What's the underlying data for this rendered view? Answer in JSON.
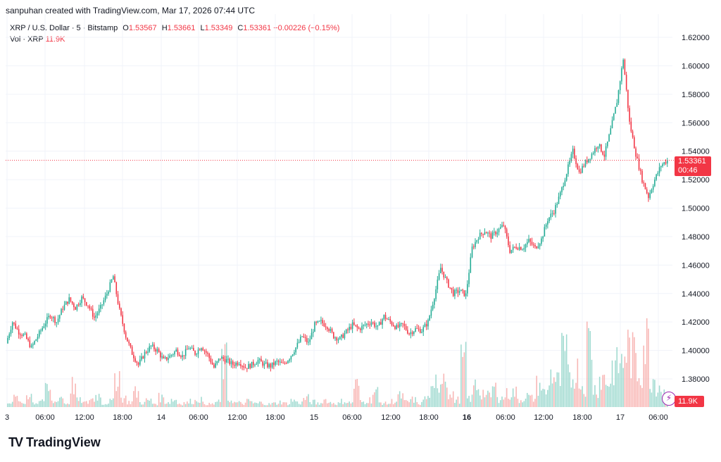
{
  "header": {
    "created_by": "sanpuhan created with TradingView.com, Mar 17, 2026 07:44 UTC"
  },
  "legend": {
    "symbol": "XRP / U.S. Dollar · 5 · Bitstamp",
    "open_label": "O",
    "open_value": "1.53567",
    "high_label": "H",
    "high_value": "1.53661",
    "low_label": "L",
    "low_value": "1.53349",
    "close_label": "C",
    "close_value": "1.53361",
    "change": "−0.00226 (−0.15%)",
    "volume_label": "Vol · XRP",
    "volume_value": "11.9K"
  },
  "price_tag": {
    "price": "1.53361",
    "countdown": "00:46"
  },
  "volume_tag": "11.9K",
  "footer": {
    "brand": "TradingView",
    "logo": "TV"
  },
  "colors": {
    "up": "#22ab94",
    "down": "#f23645",
    "vol_up": "#8fd4c8",
    "vol_down": "#f7a9a7",
    "grid": "#f0f3fa"
  },
  "chart_data": {
    "type": "candlestick",
    "symbol": "XRP / U.S. Dollar",
    "interval": "5",
    "exchange": "Bitstamp",
    "ylim": [
      1.365,
      1.625
    ],
    "y_ticks": [
      "1.62000",
      "1.60000",
      "1.58000",
      "1.56000",
      "1.54000",
      "1.52000",
      "1.50000",
      "1.48000",
      "1.46000",
      "1.44000",
      "1.42000",
      "1.40000",
      "1.38000"
    ],
    "x_ticks": [
      {
        "label": "3",
        "bold": false
      },
      {
        "label": "06:00",
        "bold": false
      },
      {
        "label": "12:00",
        "bold": false
      },
      {
        "label": "18:00",
        "bold": false
      },
      {
        "label": "14",
        "bold": false
      },
      {
        "label": "06:00",
        "bold": false
      },
      {
        "label": "12:00",
        "bold": false
      },
      {
        "label": "18:00",
        "bold": false
      },
      {
        "label": "15",
        "bold": false
      },
      {
        "label": "06:00",
        "bold": false
      },
      {
        "label": "12:00",
        "bold": false
      },
      {
        "label": "18:00",
        "bold": false
      },
      {
        "label": "16",
        "bold": true
      },
      {
        "label": "06:00",
        "bold": false
      },
      {
        "label": "12:00",
        "bold": false
      },
      {
        "label": "18:00",
        "bold": false
      },
      {
        "label": "17",
        "bold": false
      },
      {
        "label": "06:00",
        "bold": false
      }
    ],
    "grid": true,
    "last_close": 1.53361,
    "price_path": [
      [
        0,
        1.405
      ],
      [
        1,
        1.42
      ],
      [
        2,
        1.413
      ],
      [
        3,
        1.41
      ],
      [
        4,
        1.402
      ],
      [
        5,
        1.41
      ],
      [
        6,
        1.418
      ],
      [
        7,
        1.425
      ],
      [
        8,
        1.42
      ],
      [
        9,
        1.43
      ],
      [
        10,
        1.436
      ],
      [
        11,
        1.43
      ],
      [
        12,
        1.437
      ],
      [
        13,
        1.432
      ],
      [
        14,
        1.423
      ],
      [
        15,
        1.43
      ],
      [
        16,
        1.44
      ],
      [
        17,
        1.452
      ],
      [
        18,
        1.428
      ],
      [
        19,
        1.41
      ],
      [
        20,
        1.398
      ],
      [
        21,
        1.39
      ],
      [
        22,
        1.398
      ],
      [
        23,
        1.403
      ],
      [
        24,
        1.4
      ],
      [
        25,
        1.393
      ],
      [
        26,
        1.396
      ],
      [
        27,
        1.4
      ],
      [
        28,
        1.396
      ],
      [
        29,
        1.402
      ],
      [
        30,
        1.398
      ],
      [
        31,
        1.403
      ],
      [
        32,
        1.397
      ],
      [
        33,
        1.388
      ],
      [
        34,
        1.395
      ],
      [
        35,
        1.393
      ],
      [
        36,
        1.39
      ],
      [
        37,
        1.392
      ],
      [
        38,
        1.388
      ],
      [
        39,
        1.39
      ],
      [
        40,
        1.393
      ],
      [
        41,
        1.39
      ],
      [
        42,
        1.389
      ],
      [
        43,
        1.392
      ],
      [
        44,
        1.39
      ],
      [
        45,
        1.395
      ],
      [
        46,
        1.402
      ],
      [
        47,
        1.41
      ],
      [
        48,
        1.405
      ],
      [
        49,
        1.418
      ],
      [
        50,
        1.42
      ],
      [
        51,
        1.417
      ],
      [
        52,
        1.41
      ],
      [
        53,
        1.408
      ],
      [
        54,
        1.413
      ],
      [
        55,
        1.418
      ],
      [
        56,
        1.415
      ],
      [
        57,
        1.418
      ],
      [
        58,
        1.42
      ],
      [
        59,
        1.416
      ],
      [
        60,
        1.424
      ],
      [
        61,
        1.42
      ],
      [
        62,
        1.416
      ],
      [
        63,
        1.418
      ],
      [
        64,
        1.412
      ],
      [
        65,
        1.415
      ],
      [
        66,
        1.414
      ],
      [
        67,
        1.42
      ],
      [
        68,
        1.438
      ],
      [
        69,
        1.458
      ],
      [
        70,
        1.448
      ],
      [
        71,
        1.44
      ],
      [
        72,
        1.442
      ],
      [
        73,
        1.439
      ],
      [
        74,
        1.472
      ],
      [
        75,
        1.48
      ],
      [
        76,
        1.484
      ],
      [
        77,
        1.48
      ],
      [
        78,
        1.484
      ],
      [
        79,
        1.488
      ],
      [
        80,
        1.47
      ],
      [
        81,
        1.473
      ],
      [
        82,
        1.472
      ],
      [
        83,
        1.477
      ],
      [
        84,
        1.472
      ],
      [
        85,
        1.478
      ],
      [
        86,
        1.492
      ],
      [
        87,
        1.498
      ],
      [
        88,
        1.51
      ],
      [
        89,
        1.525
      ],
      [
        90,
        1.54
      ],
      [
        91,
        1.525
      ],
      [
        92,
        1.532
      ],
      [
        93,
        1.538
      ],
      [
        94,
        1.545
      ],
      [
        95,
        1.537
      ],
      [
        96,
        1.555
      ],
      [
        97,
        1.575
      ],
      [
        98,
        1.605
      ],
      [
        99,
        1.56
      ],
      [
        100,
        1.538
      ],
      [
        101,
        1.52
      ],
      [
        102,
        1.508
      ],
      [
        103,
        1.52
      ],
      [
        104,
        1.53
      ],
      [
        105,
        1.53361
      ]
    ],
    "volume_pattern": [
      0.08,
      0.12,
      0.05,
      0.18,
      0.06,
      0.1,
      0.22,
      0.07,
      0.14,
      0.05,
      0.3,
      0.09,
      0.06,
      0.11,
      0.16,
      0.05,
      0.08,
      0.45,
      0.12,
      0.07,
      0.2,
      0.06,
      0.09,
      0.05,
      0.13,
      0.07,
      0.1,
      0.05,
      0.06,
      0.08,
      0.11,
      0.05,
      0.04,
      0.07,
      0.6,
      0.1,
      0.06,
      0.05,
      0.08,
      0.05,
      0.06,
      0.04,
      0.05,
      0.07,
      0.05,
      0.09,
      0.06,
      0.12,
      0.07,
      0.05,
      0.1,
      0.06,
      0.05,
      0.08,
      0.06,
      0.3,
      0.07,
      0.1,
      0.2,
      0.06,
      0.05,
      0.08,
      0.15,
      0.07,
      0.1,
      0.05,
      0.12,
      0.2,
      0.35,
      0.5,
      0.15,
      0.1,
      0.6,
      0.12,
      0.3,
      0.2,
      0.15,
      0.25,
      0.12,
      0.18,
      0.2,
      0.1,
      0.15,
      0.12,
      0.3,
      0.2,
      0.45,
      0.35,
      0.7,
      0.4,
      0.5,
      0.3,
      0.9,
      0.25,
      0.4,
      0.35,
      0.55,
      0.6,
      0.8,
      0.7,
      0.5,
      0.9,
      0.4,
      0.3,
      0.2,
      0.15
    ]
  }
}
